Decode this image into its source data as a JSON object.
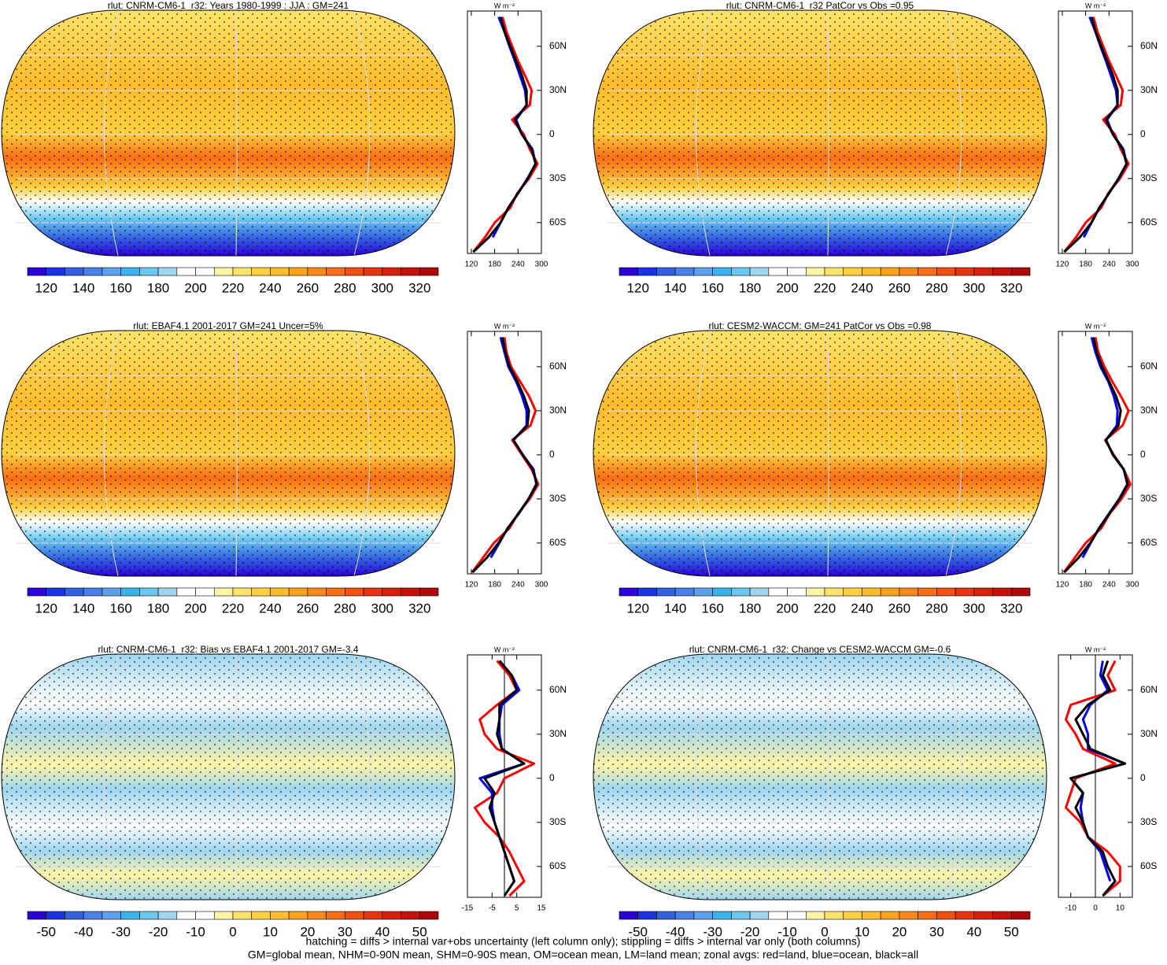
{
  "colormap": [
    "#2a00d8",
    "#1833e6",
    "#3160e0",
    "#4a80e8",
    "#5da0f0",
    "#39b4ef",
    "#6ac8f0",
    "#9fd6f0",
    "#ffffff",
    "#ffffff",
    "#fff5a8",
    "#ffe36a",
    "#ffd040",
    "#ffbc2c",
    "#ffa21c",
    "#ff8818",
    "#f96d14",
    "#f25010",
    "#e8340e",
    "#d8200c",
    "#c8100a",
    "#b00808"
  ],
  "chart_data": [
    {
      "type": "map",
      "title": "rlut: CNRM-CM6-1_r32: Years 1980-1999 : JJA : GM=241",
      "clim": [
        110,
        330
      ],
      "cticks": [
        120,
        140,
        160,
        180,
        200,
        220,
        240,
        260,
        280,
        300,
        320
      ]
    },
    {
      "type": "map",
      "title": "rlut: CNRM-CM6-1_r32 PatCor vs Obs =0.95",
      "clim": [
        110,
        330
      ],
      "cticks": [
        120,
        140,
        160,
        180,
        200,
        220,
        240,
        260,
        280,
        300,
        320
      ]
    },
    {
      "type": "map",
      "title": "rlut: EBAF4.1 2001-2017 GM=241 Uncer=5%",
      "clim": [
        110,
        330
      ],
      "cticks": [
        120,
        140,
        160,
        180,
        200,
        220,
        240,
        260,
        280,
        300,
        320
      ]
    },
    {
      "type": "map",
      "title": "rlut: CESM2-WACCM: GM=241 PatCor vs Obs =0.98",
      "clim": [
        110,
        330
      ],
      "cticks": [
        120,
        140,
        160,
        180,
        200,
        220,
        240,
        260,
        280,
        300,
        320
      ]
    },
    {
      "type": "map",
      "title": "rlut: CNRM-CM6-1_r32: Bias vs EBAF4.1 2001-2017 GM=-3.4",
      "clim": [
        -55,
        55
      ],
      "cticks": [
        -50,
        -40,
        -30,
        -20,
        -10,
        0,
        10,
        20,
        30,
        40,
        50
      ]
    },
    {
      "type": "map",
      "title": "rlut: CNRM-CM6-1_r32: Change vs CESM2-WACCM GM=-0.6",
      "clim": [
        -55,
        55
      ],
      "cticks": [
        -50,
        -40,
        -30,
        -20,
        -10,
        0,
        10,
        20,
        30,
        40,
        50
      ]
    },
    {
      "type": "line",
      "unit": "W m⁻²",
      "xlim": [
        110,
        300
      ],
      "xticks": [
        120,
        180,
        240,
        300
      ],
      "ylim": [
        -81,
        84
      ],
      "yticks": [
        {
          "value": 60,
          "label": "60N"
        },
        {
          "value": 30,
          "label": "30N"
        },
        0,
        {
          "value": -30,
          "label": "30S"
        },
        {
          "value": -60,
          "label": "60S"
        }
      ],
      "y": [
        80,
        70,
        60,
        50,
        40,
        30,
        20,
        10,
        0,
        -10,
        -20,
        -30,
        -40,
        -50,
        -60,
        -70,
        -80
      ],
      "series": [
        {
          "color": "#ff0000",
          "values": [
            200,
            210,
            225,
            240,
            258,
            275,
            270,
            225,
            255,
            270,
            290,
            268,
            238,
            220,
            180,
            155,
            125
          ]
        },
        {
          "color": "#0000ff",
          "values": [
            190,
            205,
            218,
            232,
            245,
            258,
            262,
            235,
            250,
            277,
            285,
            264,
            240,
            215,
            195,
            175,
            null
          ]
        },
        {
          "color": "#000000",
          "values": [
            195,
            205,
            220,
            235,
            250,
            262,
            262,
            232,
            250,
            275,
            285,
            265,
            240,
            215,
            195,
            165,
            125
          ]
        }
      ]
    },
    {
      "type": "line",
      "unit": "W m⁻²",
      "xlim": [
        110,
        300
      ],
      "xticks": [
        120,
        180,
        240,
        300
      ],
      "ylim": [
        -81,
        84
      ],
      "yticks": [
        {
          "value": 60,
          "label": "60N"
        },
        {
          "value": 30,
          "label": "30N"
        },
        0,
        {
          "value": -30,
          "label": "30S"
        },
        {
          "value": -60,
          "label": "60S"
        }
      ],
      "y": [
        80,
        70,
        60,
        50,
        40,
        30,
        20,
        10,
        0,
        -10,
        -20,
        -30,
        -40,
        -50,
        -60,
        -70,
        -80
      ],
      "series": [
        {
          "color": "#ff0000",
          "values": [
            200,
            210,
            225,
            240,
            258,
            275,
            270,
            225,
            255,
            270,
            290,
            268,
            238,
            220,
            180,
            155,
            125
          ]
        },
        {
          "color": "#0000ff",
          "values": [
            190,
            205,
            218,
            232,
            245,
            258,
            262,
            235,
            250,
            277,
            285,
            264,
            240,
            215,
            195,
            175,
            null
          ]
        },
        {
          "color": "#000000",
          "values": [
            195,
            205,
            220,
            235,
            250,
            262,
            262,
            232,
            250,
            275,
            285,
            265,
            240,
            215,
            195,
            165,
            125
          ]
        }
      ]
    },
    {
      "type": "line",
      "unit": "W m⁻²",
      "xlim": [
        110,
        300
      ],
      "xticks": [
        120,
        180,
        240,
        300
      ],
      "ylim": [
        -81,
        84
      ],
      "yticks": [
        {
          "value": 60,
          "label": "60N"
        },
        {
          "value": 30,
          "label": "30N"
        },
        0,
        {
          "value": -30,
          "label": "30S"
        },
        {
          "value": -60,
          "label": "60S"
        }
      ],
      "y": [
        80,
        70,
        60,
        50,
        40,
        30,
        20,
        10,
        0,
        -10,
        -20,
        -30,
        -40,
        -50,
        -60,
        -70,
        -80
      ],
      "series": [
        {
          "color": "#ff0000",
          "values": [
            205,
            210,
            222,
            245,
            268,
            285,
            272,
            225,
            250,
            275,
            292,
            270,
            240,
            218,
            178,
            150,
            122
          ]
        },
        {
          "color": "#0000ff",
          "values": [
            195,
            205,
            215,
            235,
            250,
            262,
            262,
            228,
            252,
            280,
            287,
            267,
            242,
            213,
            192,
            170,
            null
          ]
        },
        {
          "color": "#000000",
          "values": [
            200,
            207,
            218,
            238,
            255,
            268,
            264,
            228,
            252,
            278,
            288,
            267,
            241,
            214,
            190,
            160,
            123
          ]
        }
      ]
    },
    {
      "type": "line",
      "unit": "W m⁻²",
      "xlim": [
        110,
        300
      ],
      "xticks": [
        120,
        180,
        240,
        300
      ],
      "ylim": [
        -81,
        84
      ],
      "yticks": [
        {
          "value": 60,
          "label": "60N"
        },
        {
          "value": 30,
          "label": "30N"
        },
        0,
        {
          "value": -30,
          "label": "30S"
        },
        {
          "value": -60,
          "label": "60S"
        }
      ],
      "y": [
        80,
        70,
        60,
        50,
        40,
        30,
        20,
        10,
        0,
        -10,
        -20,
        -30,
        -40,
        -50,
        -60,
        -70,
        -80
      ],
      "series": [
        {
          "color": "#ff0000",
          "values": [
            205,
            212,
            228,
            248,
            270,
            290,
            275,
            230,
            252,
            278,
            295,
            272,
            242,
            220,
            180,
            152,
            124
          ]
        },
        {
          "color": "#0000ff",
          "values": [
            195,
            205,
            218,
            238,
            252,
            262,
            260,
            232,
            250,
            278,
            287,
            266,
            240,
            214,
            193,
            172,
            null
          ]
        },
        {
          "color": "#000000",
          "values": [
            200,
            208,
            222,
            240,
            258,
            270,
            264,
            232,
            250,
            278,
            288,
            267,
            241,
            215,
            192,
            162,
            125
          ]
        }
      ]
    },
    {
      "type": "line",
      "unit": "W m⁻²",
      "xlim": [
        -15,
        15
      ],
      "xticks": [
        -15,
        -5,
        5,
        15
      ],
      "ylim": [
        -81,
        84
      ],
      "yticks": [
        {
          "value": 60,
          "label": "60N"
        },
        {
          "value": 30,
          "label": "30N"
        },
        0,
        {
          "value": -30,
          "label": "30S"
        },
        {
          "value": -60,
          "label": "60S"
        }
      ],
      "y": [
        80,
        70,
        60,
        50,
        40,
        30,
        20,
        10,
        0,
        -10,
        -20,
        -30,
        -40,
        -50,
        -60,
        -70,
        -80
      ],
      "series": [
        {
          "color": "#ff0000",
          "values": [
            -3,
            2,
            5,
            -3,
            -10,
            -8,
            -3,
            12,
            0,
            -3,
            -12,
            -8,
            -2,
            2,
            5,
            8,
            2
          ]
        },
        {
          "color": "#0000ff",
          "values": [
            -2,
            3,
            6,
            -1,
            -2,
            -2,
            -1,
            8,
            -10,
            -5,
            -5,
            -4,
            -2,
            0,
            2,
            4,
            null
          ]
        },
        {
          "color": "#000000",
          "values": [
            -2,
            3,
            5,
            -2,
            -2,
            -3,
            -1,
            8,
            -8,
            -4,
            -6,
            -4,
            -2,
            0,
            2,
            4,
            0
          ]
        }
      ]
    },
    {
      "type": "line",
      "unit": "W m⁻²",
      "xlim": [
        -15,
        15
      ],
      "xticks": [
        -10,
        0,
        10
      ],
      "ylim": [
        -81,
        84
      ],
      "yticks": [
        {
          "value": 60,
          "label": "60N"
        },
        {
          "value": 30,
          "label": "30N"
        },
        0,
        {
          "value": -30,
          "label": "30S"
        },
        {
          "value": -60,
          "label": "60S"
        }
      ],
      "y": [
        80,
        70,
        60,
        50,
        40,
        30,
        20,
        10,
        0,
        -10,
        -20,
        -30,
        -40,
        -50,
        -60,
        -70,
        -80
      ],
      "series": [
        {
          "color": "#ff0000",
          "values": [
            8,
            5,
            8,
            -10,
            -12,
            -8,
            -5,
            8,
            -8,
            -10,
            -12,
            -6,
            -3,
            5,
            10,
            10,
            3
          ]
        },
        {
          "color": "#0000ff",
          "values": [
            3,
            2,
            5,
            -2,
            -5,
            -3,
            -3,
            12,
            -10,
            -5,
            -6,
            -5,
            -3,
            2,
            4,
            6,
            null
          ]
        },
        {
          "color": "#000000",
          "values": [
            5,
            3,
            6,
            -3,
            -8,
            -5,
            -2,
            12,
            -10,
            -5,
            -8,
            -5,
            -3,
            3,
            5,
            8,
            3
          ]
        }
      ]
    }
  ],
  "footnotes": [
    "hatching = diffs > internal var+obs uncertainty (left column only); stippling = diffs > internal var only (both columns)",
    "GM=global mean, NHM=0-90N mean, SHM=0-90S mean, OM=ocean mean, LM=land mean; zonal avgs: red=land, blue=ocean, black=all"
  ]
}
